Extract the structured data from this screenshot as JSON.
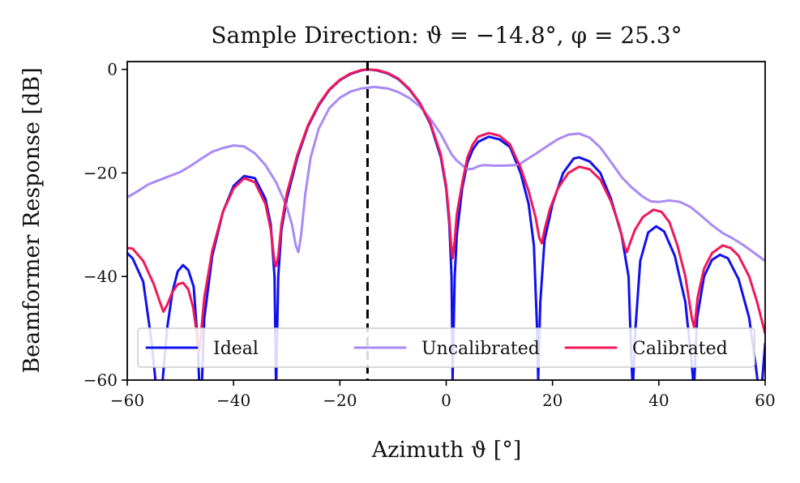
{
  "chart_data": {
    "type": "line",
    "title": "Sample Direction: ϑ = −14.8°, φ = 25.3°",
    "xlabel": "Azimuth ϑ [°]",
    "ylabel": "Beamformer Response [dB]",
    "xlim": [
      -60,
      60
    ],
    "ylim": [
      -60,
      1.5
    ],
    "xticks": [
      -60,
      -40,
      -20,
      0,
      20,
      40,
      60
    ],
    "xtick_labels": [
      "−60",
      "−40",
      "−20",
      "0",
      "20",
      "40",
      "60"
    ],
    "yticks": [
      0,
      -20,
      -40,
      -60
    ],
    "ytick_labels": [
      "0",
      "−20",
      "−40",
      "−60"
    ],
    "grid": false,
    "legend_position": "bottom",
    "vline": {
      "x": -14.8,
      "style": "dashed",
      "color": "#000000"
    },
    "series": [
      {
        "name": "Ideal",
        "color": "#1010ee",
        "points": [
          [
            -60,
            -35.5
          ],
          [
            -59,
            -36.5
          ],
          [
            -57,
            -41
          ],
          [
            -55.5,
            -52
          ],
          [
            -54.5,
            -62
          ],
          [
            -53.5,
            -62
          ],
          [
            -52.5,
            -50
          ],
          [
            -51.5,
            -43
          ],
          [
            -50.5,
            -39
          ],
          [
            -49.5,
            -37.8
          ],
          [
            -48.5,
            -38.8
          ],
          [
            -47.5,
            -42
          ],
          [
            -46.8,
            -52
          ],
          [
            -46.4,
            -62
          ],
          [
            -46.0,
            -62
          ],
          [
            -45.5,
            -48
          ],
          [
            -44,
            -36
          ],
          [
            -42,
            -27.5
          ],
          [
            -40,
            -22.5
          ],
          [
            -38,
            -20.6
          ],
          [
            -36,
            -21
          ],
          [
            -34,
            -25
          ],
          [
            -33,
            -30
          ],
          [
            -32.3,
            -40
          ],
          [
            -32.0,
            -62
          ],
          [
            -31.6,
            -40
          ],
          [
            -31,
            -31
          ],
          [
            -30,
            -25
          ],
          [
            -28,
            -17
          ],
          [
            -26,
            -11
          ],
          [
            -24,
            -7
          ],
          [
            -22,
            -4
          ],
          [
            -20,
            -2.1
          ],
          [
            -18,
            -0.9
          ],
          [
            -16,
            -0.2
          ],
          [
            -14.8,
            0
          ],
          [
            -13,
            -0.2
          ],
          [
            -11,
            -0.8
          ],
          [
            -9,
            -1.9
          ],
          [
            -7,
            -3.8
          ],
          [
            -5,
            -6.5
          ],
          [
            -3,
            -10.5
          ],
          [
            -1,
            -17
          ],
          [
            0,
            -23
          ],
          [
            0.6,
            -30
          ],
          [
            1.0,
            -40
          ],
          [
            1.2,
            -60
          ],
          [
            1.6,
            -40
          ],
          [
            2,
            -32
          ],
          [
            3,
            -23
          ],
          [
            4,
            -18
          ],
          [
            5,
            -15.5
          ],
          [
            6,
            -14
          ],
          [
            8,
            -13
          ],
          [
            10,
            -13.5
          ],
          [
            12,
            -15
          ],
          [
            14,
            -20
          ],
          [
            15.5,
            -26
          ],
          [
            16.5,
            -34
          ],
          [
            17.1,
            -50
          ],
          [
            17.3,
            -60
          ],
          [
            17.7,
            -45
          ],
          [
            18.5,
            -33
          ],
          [
            20,
            -26
          ],
          [
            22,
            -20
          ],
          [
            24,
            -17.2
          ],
          [
            25,
            -17
          ],
          [
            27,
            -17.8
          ],
          [
            29,
            -20
          ],
          [
            31,
            -25
          ],
          [
            33,
            -32
          ],
          [
            34.3,
            -40
          ],
          [
            34.8,
            -55
          ],
          [
            35.1,
            -62
          ],
          [
            35.6,
            -50
          ],
          [
            36.5,
            -37
          ],
          [
            38,
            -31.5
          ],
          [
            39.5,
            -30.3
          ],
          [
            41,
            -31.3
          ],
          [
            43,
            -36
          ],
          [
            45,
            -45
          ],
          [
            46.2,
            -57
          ],
          [
            46.6,
            -62
          ],
          [
            47.2,
            -48
          ],
          [
            48.5,
            -40
          ],
          [
            50,
            -36.8
          ],
          [
            51.5,
            -35.8
          ],
          [
            53,
            -36.5
          ],
          [
            55,
            -40.5
          ],
          [
            57,
            -48
          ],
          [
            58.2,
            -57
          ],
          [
            58.8,
            -62
          ],
          [
            59.3,
            -62
          ],
          [
            59.6,
            -58
          ],
          [
            60,
            -53
          ]
        ]
      },
      {
        "name": "Uncalibrated",
        "color": "#a98af5",
        "points": [
          [
            -60,
            -24.7
          ],
          [
            -58,
            -23.5
          ],
          [
            -56,
            -22.2
          ],
          [
            -54,
            -21.4
          ],
          [
            -52,
            -20.6
          ],
          [
            -50,
            -19.8
          ],
          [
            -48,
            -18.6
          ],
          [
            -46,
            -17.2
          ],
          [
            -44,
            -15.9
          ],
          [
            -42,
            -15.2
          ],
          [
            -40,
            -14.7
          ],
          [
            -38,
            -14.9
          ],
          [
            -36,
            -16.2
          ],
          [
            -34,
            -18.5
          ],
          [
            -32,
            -21.8
          ],
          [
            -30,
            -26.5
          ],
          [
            -29,
            -30
          ],
          [
            -28.3,
            -34
          ],
          [
            -27.8,
            -35.3
          ],
          [
            -27.3,
            -32
          ],
          [
            -26.5,
            -24
          ],
          [
            -25.5,
            -17
          ],
          [
            -24,
            -11.5
          ],
          [
            -22,
            -7.5
          ],
          [
            -20,
            -5.5
          ],
          [
            -18,
            -4.3
          ],
          [
            -16,
            -3.7
          ],
          [
            -13.5,
            -3.4
          ],
          [
            -11,
            -3.7
          ],
          [
            -9,
            -4.4
          ],
          [
            -7,
            -5.5
          ],
          [
            -5,
            -7.1
          ],
          [
            -3,
            -9.5
          ],
          [
            -1,
            -12.5
          ],
          [
            0,
            -14.5
          ],
          [
            1,
            -16.4
          ],
          [
            2,
            -17.6
          ],
          [
            3,
            -18.5
          ],
          [
            4,
            -19.3
          ],
          [
            5,
            -19.2
          ],
          [
            6,
            -18.7
          ],
          [
            7,
            -18.5
          ],
          [
            9,
            -18.6
          ],
          [
            11,
            -18.6
          ],
          [
            13,
            -18.5
          ],
          [
            14,
            -18.2
          ],
          [
            15,
            -17.5
          ],
          [
            17,
            -16.2
          ],
          [
            19,
            -14.8
          ],
          [
            21,
            -13.5
          ],
          [
            23,
            -12.6
          ],
          [
            25,
            -12.4
          ],
          [
            27,
            -13.2
          ],
          [
            29,
            -15.1
          ],
          [
            31,
            -17.9
          ],
          [
            33,
            -20.8
          ],
          [
            35,
            -22.9
          ],
          [
            37,
            -24.6
          ],
          [
            38.5,
            -25.5
          ],
          [
            40,
            -25.6
          ],
          [
            42,
            -25.3
          ],
          [
            44,
            -25.6
          ],
          [
            46,
            -26.6
          ],
          [
            48,
            -28.3
          ],
          [
            50,
            -30.1
          ],
          [
            52,
            -31.6
          ],
          [
            54,
            -32.7
          ],
          [
            56,
            -34
          ],
          [
            58,
            -35.5
          ],
          [
            60,
            -37
          ]
        ]
      },
      {
        "name": "Calibrated",
        "color": "#f0185a",
        "points": [
          [
            -60,
            -34.5
          ],
          [
            -59,
            -34.6
          ],
          [
            -57,
            -37
          ],
          [
            -55,
            -41.5
          ],
          [
            -54,
            -44.5
          ],
          [
            -53.2,
            -46.8
          ],
          [
            -52.5,
            -45.5
          ],
          [
            -51.5,
            -43
          ],
          [
            -50.5,
            -41.5
          ],
          [
            -49.5,
            -41.2
          ],
          [
            -48.5,
            -42.5
          ],
          [
            -47.6,
            -46
          ],
          [
            -47.0,
            -50.5
          ],
          [
            -46.6,
            -55
          ],
          [
            -46.2,
            -52
          ],
          [
            -45.5,
            -44
          ],
          [
            -44,
            -35
          ],
          [
            -42,
            -27.5
          ],
          [
            -40,
            -23
          ],
          [
            -38,
            -21
          ],
          [
            -36,
            -21.8
          ],
          [
            -34,
            -26
          ],
          [
            -33,
            -31
          ],
          [
            -32.3,
            -37.3
          ],
          [
            -32,
            -38
          ],
          [
            -31.6,
            -36
          ],
          [
            -31,
            -30
          ],
          [
            -30,
            -24
          ],
          [
            -28,
            -16.5
          ],
          [
            -26,
            -10.8
          ],
          [
            -24,
            -6.8
          ],
          [
            -22,
            -3.9
          ],
          [
            -20,
            -2.0
          ],
          [
            -18,
            -0.8
          ],
          [
            -16,
            -0.15
          ],
          [
            -14.8,
            0
          ],
          [
            -13,
            -0.15
          ],
          [
            -11,
            -0.7
          ],
          [
            -9,
            -1.8
          ],
          [
            -7,
            -3.7
          ],
          [
            -5,
            -6.4
          ],
          [
            -3,
            -10.3
          ],
          [
            -1,
            -16.5
          ],
          [
            0,
            -22.5
          ],
          [
            0.6,
            -29
          ],
          [
            1.0,
            -35
          ],
          [
            1.2,
            -36.5
          ],
          [
            1.6,
            -33
          ],
          [
            2,
            -28
          ],
          [
            3,
            -22
          ],
          [
            4,
            -17
          ],
          [
            5,
            -14.5
          ],
          [
            6,
            -13
          ],
          [
            8,
            -12.3
          ],
          [
            10,
            -12.8
          ],
          [
            12,
            -14.5
          ],
          [
            14,
            -19
          ],
          [
            15.5,
            -23.5
          ],
          [
            16.8,
            -28.5
          ],
          [
            17.5,
            -32.5
          ],
          [
            18.0,
            -33.6
          ],
          [
            18.5,
            -31
          ],
          [
            19.5,
            -27
          ],
          [
            21,
            -23
          ],
          [
            23,
            -20
          ],
          [
            25,
            -18.8
          ],
          [
            27,
            -19.3
          ],
          [
            29,
            -21.3
          ],
          [
            31,
            -25.5
          ],
          [
            32.5,
            -30
          ],
          [
            33.5,
            -34
          ],
          [
            34,
            -35.3
          ],
          [
            34.6,
            -33.5
          ],
          [
            35.5,
            -31
          ],
          [
            37,
            -28.5
          ],
          [
            39,
            -27.1
          ],
          [
            40.5,
            -27.5
          ],
          [
            42,
            -29.5
          ],
          [
            43.5,
            -34
          ],
          [
            45,
            -40
          ],
          [
            46.2,
            -48
          ],
          [
            46.7,
            -50
          ],
          [
            47.3,
            -44
          ],
          [
            48.5,
            -38.5
          ],
          [
            50,
            -35.5
          ],
          [
            52,
            -34
          ],
          [
            53.5,
            -34.5
          ],
          [
            55,
            -36
          ],
          [
            57,
            -40
          ],
          [
            58.5,
            -45
          ],
          [
            59.5,
            -49
          ],
          [
            60,
            -51
          ]
        ]
      }
    ]
  }
}
